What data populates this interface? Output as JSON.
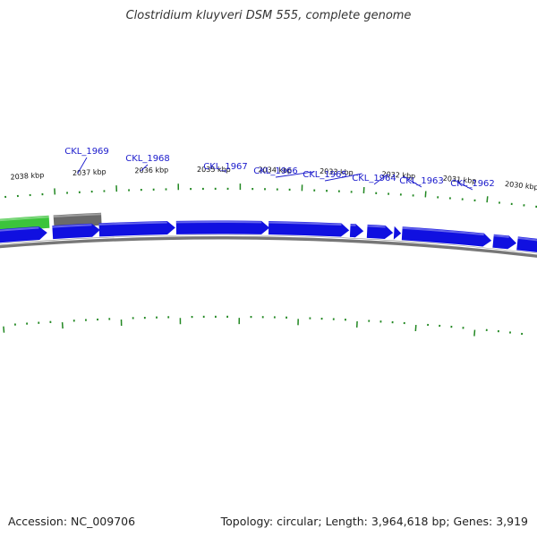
{
  "title": "Clostridium kluyveri DSM 555, complete genome",
  "footer": {
    "accession": "Accession: NC_009706",
    "summary": "Topology: circular; Length: 3,964,618 bp; Genes: 3,919"
  },
  "colors": {
    "forward_gene": "#1010e0",
    "rna_gene": "#3cc43c",
    "pseudo_gene": "#6a6a6a",
    "backbone": "#777777",
    "tick": "#228822",
    "label": "#1a1acc"
  },
  "kbp_labels": [
    "2038 kbp",
    "2037 kbp",
    "2036 kbp",
    "2035 kbp",
    "2034 kbp",
    "2033 kbp",
    "2032 kbp",
    "2031 kbp",
    "2030 kbp"
  ],
  "genes": [
    {
      "locus": "CKL_1969",
      "type": "forward"
    },
    {
      "locus": "CKL_1968",
      "type": "forward"
    },
    {
      "locus": "CKL_1967",
      "type": "forward"
    },
    {
      "locus": "CKL_1966",
      "type": "forward"
    },
    {
      "locus": "CKL_1965",
      "type": "forward"
    },
    {
      "locus": "CKL_1964",
      "type": "forward"
    },
    {
      "locus": "CKL_1963",
      "type": "forward"
    },
    {
      "locus": "CKL_1962",
      "type": "forward"
    }
  ]
}
